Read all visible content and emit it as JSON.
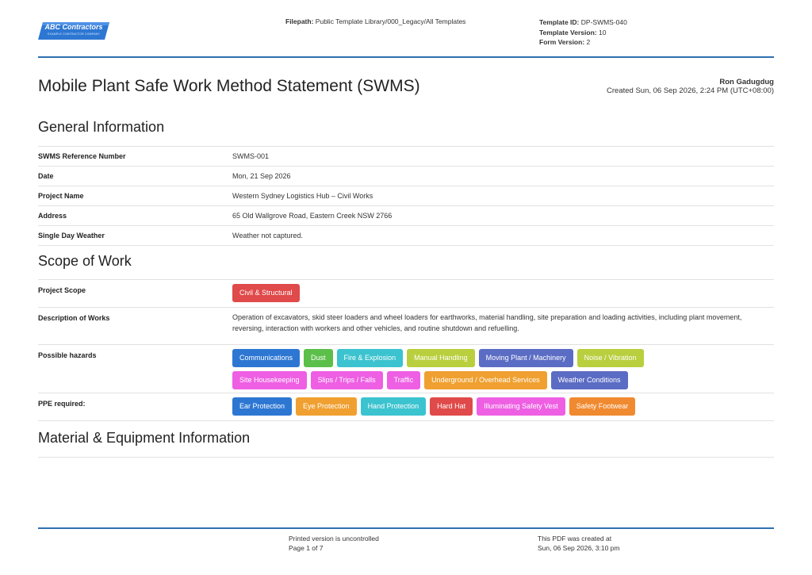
{
  "header": {
    "logo_text": "ABC Contractors",
    "logo_subtext": "EXAMPLE CONTRACTOR COMPANY",
    "filepath_label": "Filepath:",
    "filepath_value": "Public Template Library/000_Legacy/All Templates",
    "template_id_label": "Template ID:",
    "template_id_value": "DP-SWMS-040",
    "template_version_label": "Template Version:",
    "template_version_value": "10",
    "form_version_label": "Form Version:",
    "form_version_value": "2"
  },
  "document": {
    "title": "Mobile Plant Safe Work Method Statement (SWMS)",
    "author": "Ron Gadugdug",
    "created": "Created Sun, 06 Sep 2026, 2:24 PM (UTC+08:00)"
  },
  "general": {
    "heading": "General Information",
    "rows": [
      {
        "label": "SWMS Reference Number",
        "value": "SWMS-001"
      },
      {
        "label": "Date",
        "value": "Mon, 21 Sep 2026"
      },
      {
        "label": "Project Name",
        "value": "Western Sydney Logistics Hub – Civil Works"
      },
      {
        "label": "Address",
        "value": "65 Old Wallgrove Road, Eastern Creek NSW 2766"
      },
      {
        "label": "Single Day Weather",
        "value": "Weather not captured."
      }
    ]
  },
  "scope": {
    "heading": "Scope of Work",
    "project_scope_label": "Project Scope",
    "project_scope_tags": [
      {
        "text": "Civil & Structural",
        "color": "#e04a4a"
      }
    ],
    "description_label": "Description of Works",
    "description": "Operation of excavators, skid steer loaders and wheel loaders for earthworks, material handling, site preparation and loading activities, including plant movement, reversing, interaction with workers and other vehicles, and routine shutdown and refuelling.",
    "hazards_label": "Possible hazards",
    "hazards": [
      {
        "text": "Communications",
        "color": "#2d77d3"
      },
      {
        "text": "Dust",
        "color": "#5cbf4a"
      },
      {
        "text": "Fire & Explosion",
        "color": "#3bc3cf"
      },
      {
        "text": "Manual Handling",
        "color": "#b9cf3d"
      },
      {
        "text": "Moving Plant / Machinery",
        "color": "#5b6cc4"
      },
      {
        "text": "Noise / Vibration",
        "color": "#b9cf3d"
      },
      {
        "text": "Site Housekeeping",
        "color": "#ee5fe3"
      },
      {
        "text": "Slips / Trips / Falls",
        "color": "#ee5fe3"
      },
      {
        "text": "Traffic",
        "color": "#ee5fe3"
      },
      {
        "text": "Underground / Overhead Services",
        "color": "#f0a030"
      },
      {
        "text": "Weather Conditions",
        "color": "#5b6cc4"
      }
    ],
    "ppe_label": "PPE required:",
    "ppe": [
      {
        "text": "Ear Protection",
        "color": "#2d77d3"
      },
      {
        "text": "Eye Protection",
        "color": "#f0a030"
      },
      {
        "text": "Hand Protection",
        "color": "#3bc3cf"
      },
      {
        "text": "Hard Hat",
        "color": "#e04a4a"
      },
      {
        "text": "Illuminating Safety Vest",
        "color": "#ee5fe3"
      },
      {
        "text": "Safety Footwear",
        "color": "#f08a30"
      }
    ]
  },
  "material": {
    "heading": "Material & Equipment Information"
  },
  "footer": {
    "uncontrolled": "Printed version is uncontrolled",
    "page": "Page 1 of 7",
    "pdf_created_label": "This PDF was created at",
    "pdf_created_value": "Sun, 06 Sep 2026, 3:10 pm"
  }
}
